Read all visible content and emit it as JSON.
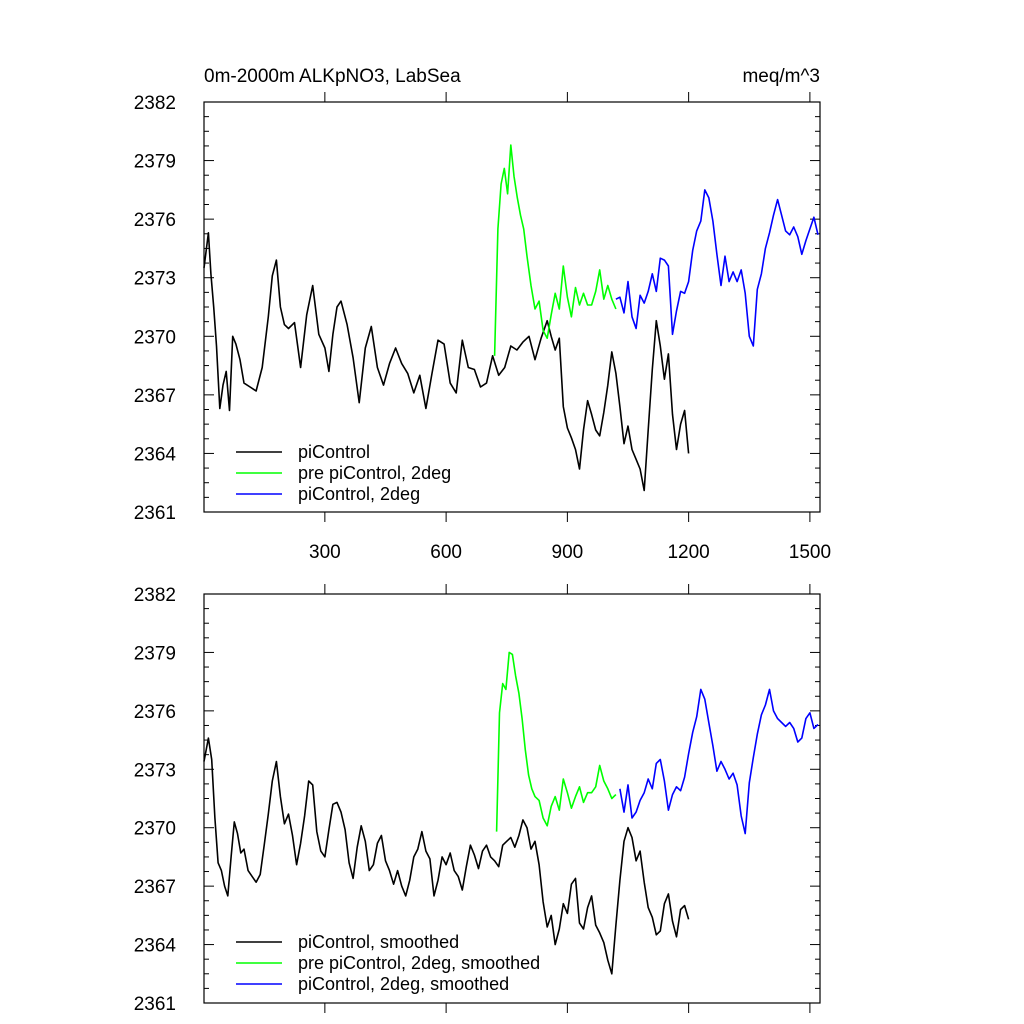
{
  "chart_data": [
    {
      "type": "line",
      "title": "0m-2000m ALKpNO3, LabSea",
      "units": "meq/m^3",
      "xlim": [
        1,
        1525
      ],
      "ylim": [
        2361,
        2382
      ],
      "x_ticks": [
        300,
        600,
        900,
        1200,
        1500
      ],
      "x_tick_labels": [
        "300",
        "600",
        "900",
        "1200",
        "1500"
      ],
      "y_ticks": [
        2361,
        2364,
        2367,
        2370,
        2373,
        2376,
        2379,
        2382
      ],
      "y_tick_labels": [
        "2361",
        "2364",
        "2367",
        "2370",
        "2373",
        "2376",
        "2379",
        "2382"
      ],
      "legend_position": "bottom-left",
      "series": [
        {
          "name": "piControl",
          "color": "#000000",
          "x": [
            1,
            12,
            18,
            25,
            32,
            40,
            48,
            56,
            64,
            72,
            80,
            90,
            100,
            115,
            130,
            145,
            160,
            170,
            180,
            190,
            200,
            210,
            225,
            240,
            255,
            270,
            285,
            300,
            310,
            320,
            330,
            340,
            355,
            370,
            385,
            400,
            415,
            430,
            445,
            460,
            475,
            490,
            505,
            520,
            535,
            550,
            565,
            580,
            595,
            610,
            625,
            640,
            655,
            670,
            685,
            700,
            715,
            730,
            745,
            760,
            775,
            790,
            805,
            820,
            835,
            850,
            860,
            870,
            880,
            890,
            900,
            910,
            920,
            930,
            940,
            950,
            960,
            970,
            980,
            990,
            1000,
            1010,
            1020,
            1030,
            1040,
            1050,
            1060,
            1070,
            1080,
            1090,
            1100,
            1110,
            1120,
            1130,
            1140,
            1150,
            1160,
            1170,
            1180,
            1190,
            1200
          ],
          "values": [
            2373.5,
            2375.3,
            2373.2,
            2371.5,
            2369.5,
            2366.3,
            2367.5,
            2368.2,
            2366.2,
            2370.0,
            2369.6,
            2368.8,
            2367.6,
            2367.4,
            2367.2,
            2368.4,
            2371.0,
            2373.1,
            2373.9,
            2371.5,
            2370.6,
            2370.4,
            2370.7,
            2368.4,
            2371.1,
            2372.6,
            2370.1,
            2369.4,
            2368.2,
            2370.1,
            2371.5,
            2371.8,
            2370.6,
            2368.9,
            2366.6,
            2369.4,
            2370.5,
            2368.4,
            2367.5,
            2368.6,
            2369.4,
            2368.6,
            2368.1,
            2367.1,
            2368.0,
            2366.3,
            2368.1,
            2369.8,
            2369.6,
            2367.6,
            2367.1,
            2369.8,
            2368.4,
            2368.3,
            2367.4,
            2367.6,
            2369.0,
            2368.0,
            2368.4,
            2369.5,
            2369.3,
            2369.7,
            2370.0,
            2368.8,
            2369.9,
            2370.8,
            2370.0,
            2369.3,
            2369.9,
            2366.4,
            2365.3,
            2364.8,
            2364.2,
            2363.2,
            2365.2,
            2366.7,
            2366.0,
            2365.2,
            2364.9,
            2366.1,
            2367.5,
            2369.2,
            2368.1,
            2366.4,
            2364.5,
            2365.4,
            2364.2,
            2363.7,
            2363.2,
            2362.1,
            2365.2,
            2368.3,
            2370.8,
            2369.5,
            2367.8,
            2369.1,
            2366.0,
            2364.2,
            2365.5,
            2366.2,
            2364.0
          ]
        },
        {
          "name": "pre piControl, 2deg",
          "color": "#00ff00",
          "x": [
            720,
            728,
            736,
            744,
            752,
            760,
            768,
            776,
            784,
            792,
            800,
            810,
            820,
            830,
            840,
            850,
            860,
            870,
            880,
            890,
            900,
            910,
            920,
            930,
            940,
            950,
            960,
            970,
            980,
            990,
            1000,
            1010,
            1020
          ],
          "values": [
            2369.0,
            2375.5,
            2377.8,
            2378.6,
            2377.3,
            2379.8,
            2378.2,
            2377.1,
            2376.2,
            2375.5,
            2374.1,
            2372.6,
            2371.4,
            2371.8,
            2370.3,
            2369.9,
            2371.1,
            2372.2,
            2371.4,
            2373.6,
            2372.0,
            2371.0,
            2372.5,
            2371.6,
            2372.2,
            2371.6,
            2371.6,
            2372.3,
            2373.4,
            2371.9,
            2372.6,
            2371.9,
            2371.4
          ]
        },
        {
          "name": "piControl, 2deg",
          "color": "#0000ff",
          "x": [
            1020,
            1030,
            1040,
            1050,
            1060,
            1070,
            1080,
            1090,
            1100,
            1110,
            1120,
            1130,
            1140,
            1150,
            1160,
            1170,
            1180,
            1190,
            1200,
            1210,
            1220,
            1230,
            1240,
            1250,
            1260,
            1270,
            1280,
            1290,
            1300,
            1310,
            1320,
            1330,
            1340,
            1350,
            1360,
            1370,
            1380,
            1390,
            1400,
            1410,
            1420,
            1430,
            1440,
            1450,
            1460,
            1470,
            1480,
            1490,
            1500,
            1510,
            1520
          ],
          "values": [
            2371.9,
            2372.0,
            2371.2,
            2372.8,
            2371.0,
            2370.4,
            2372.1,
            2371.7,
            2372.3,
            2373.2,
            2372.3,
            2374.0,
            2373.9,
            2373.6,
            2370.1,
            2371.3,
            2372.3,
            2372.2,
            2372.8,
            2374.4,
            2375.4,
            2375.9,
            2377.5,
            2377.1,
            2375.9,
            2374.2,
            2372.6,
            2374.1,
            2372.8,
            2373.3,
            2372.8,
            2373.4,
            2372.2,
            2370.0,
            2369.5,
            2372.4,
            2373.2,
            2374.5,
            2375.3,
            2376.2,
            2377.0,
            2376.2,
            2375.4,
            2375.2,
            2375.6,
            2375.1,
            2374.2,
            2374.9,
            2375.5,
            2376.1,
            2375.2
          ]
        }
      ]
    },
    {
      "type": "line",
      "title": "",
      "xlim": [
        1,
        1525
      ],
      "ylim": [
        2361,
        2382
      ],
      "x_ticks": [
        300,
        600,
        900,
        1200,
        1500
      ],
      "y_ticks": [
        2361,
        2364,
        2367,
        2370,
        2373,
        2376,
        2379,
        2382
      ],
      "y_tick_labels": [
        "2361",
        "2364",
        "2367",
        "2370",
        "2373",
        "2376",
        "2379",
        "2382"
      ],
      "legend_position": "bottom-left",
      "series": [
        {
          "name": "piControl, smoothed",
          "color": "#000000",
          "x": [
            1,
            12,
            20,
            28,
            36,
            44,
            52,
            60,
            68,
            76,
            84,
            92,
            100,
            110,
            120,
            130,
            140,
            150,
            160,
            170,
            180,
            190,
            200,
            210,
            220,
            230,
            240,
            250,
            260,
            270,
            280,
            290,
            300,
            310,
            320,
            330,
            340,
            350,
            360,
            370,
            380,
            390,
            400,
            410,
            420,
            430,
            440,
            450,
            460,
            470,
            480,
            490,
            500,
            510,
            520,
            530,
            540,
            550,
            560,
            570,
            580,
            590,
            600,
            610,
            620,
            630,
            640,
            650,
            660,
            670,
            680,
            690,
            700,
            710,
            720,
            730,
            740,
            750,
            760,
            770,
            780,
            790,
            800,
            810,
            820,
            830,
            840,
            850,
            860,
            870,
            880,
            890,
            900,
            910,
            920,
            930,
            940,
            950,
            960,
            970,
            980,
            990,
            1000,
            1010,
            1020,
            1030,
            1040,
            1050,
            1060,
            1070,
            1080,
            1090,
            1100,
            1110,
            1120,
            1130,
            1140,
            1150,
            1160,
            1170,
            1180,
            1190,
            1200
          ],
          "values": [
            2373.4,
            2374.6,
            2373.5,
            2370.5,
            2368.2,
            2367.8,
            2367.0,
            2366.5,
            2368.5,
            2370.3,
            2369.7,
            2368.7,
            2368.9,
            2367.8,
            2367.5,
            2367.2,
            2367.6,
            2369.1,
            2370.7,
            2372.4,
            2373.4,
            2371.6,
            2370.2,
            2370.7,
            2369.6,
            2368.1,
            2369.2,
            2370.6,
            2372.4,
            2372.2,
            2369.8,
            2368.8,
            2368.5,
            2369.9,
            2371.2,
            2371.3,
            2370.8,
            2369.9,
            2368.2,
            2367.4,
            2369.0,
            2370.1,
            2369.3,
            2367.8,
            2368.1,
            2369.2,
            2369.6,
            2368.3,
            2367.8,
            2367.1,
            2367.8,
            2367.0,
            2366.5,
            2367.3,
            2368.5,
            2368.9,
            2369.8,
            2368.8,
            2368.4,
            2366.5,
            2367.3,
            2368.5,
            2368.1,
            2368.7,
            2367.8,
            2367.5,
            2366.8,
            2368.0,
            2369.1,
            2368.6,
            2367.9,
            2368.8,
            2369.1,
            2368.5,
            2368.3,
            2368.0,
            2369.1,
            2369.3,
            2369.5,
            2369.0,
            2369.6,
            2370.4,
            2370.0,
            2368.9,
            2369.3,
            2368.1,
            2366.2,
            2364.9,
            2365.5,
            2364.0,
            2364.8,
            2366.1,
            2365.6,
            2367.1,
            2367.4,
            2365.1,
            2364.8,
            2365.9,
            2366.5,
            2365.0,
            2364.6,
            2364.1,
            2363.2,
            2362.5,
            2365.0,
            2367.3,
            2369.3,
            2370.0,
            2369.5,
            2368.3,
            2368.8,
            2367.2,
            2365.9,
            2365.4,
            2364.5,
            2364.7,
            2366.1,
            2366.6,
            2365.2,
            2364.4,
            2365.8,
            2366.0,
            2365.3
          ]
        },
        {
          "name": "pre piControl, 2deg, smoothed",
          "color": "#00ff00",
          "x": [
            725,
            732,
            740,
            748,
            756,
            764,
            772,
            780,
            788,
            796,
            804,
            812,
            820,
            830,
            840,
            850,
            860,
            870,
            880,
            890,
            900,
            910,
            920,
            930,
            940,
            950,
            960,
            970,
            980,
            990,
            1000,
            1010,
            1020
          ],
          "values": [
            2369.8,
            2375.9,
            2377.4,
            2377.1,
            2379.0,
            2378.9,
            2377.8,
            2376.9,
            2375.6,
            2374.0,
            2372.7,
            2372.0,
            2371.6,
            2371.4,
            2370.5,
            2370.1,
            2371.1,
            2371.6,
            2370.9,
            2372.5,
            2371.8,
            2371.0,
            2371.6,
            2372.1,
            2371.3,
            2371.8,
            2371.8,
            2372.1,
            2373.2,
            2372.4,
            2372.0,
            2371.5,
            2371.7
          ]
        },
        {
          "name": "piControl, 2deg, smoothed",
          "color": "#0000ff",
          "x": [
            1030,
            1040,
            1050,
            1060,
            1070,
            1080,
            1090,
            1100,
            1110,
            1120,
            1130,
            1140,
            1150,
            1160,
            1170,
            1180,
            1190,
            1200,
            1210,
            1220,
            1230,
            1240,
            1250,
            1260,
            1270,
            1280,
            1290,
            1300,
            1310,
            1320,
            1330,
            1340,
            1350,
            1360,
            1370,
            1380,
            1390,
            1400,
            1410,
            1420,
            1430,
            1440,
            1450,
            1460,
            1470,
            1480,
            1490,
            1500,
            1510,
            1520
          ],
          "values": [
            2372.0,
            2370.8,
            2372.2,
            2370.5,
            2370.8,
            2371.4,
            2371.8,
            2372.5,
            2372.0,
            2373.3,
            2373.5,
            2372.4,
            2370.9,
            2371.7,
            2372.1,
            2371.9,
            2372.6,
            2373.8,
            2374.9,
            2375.7,
            2377.1,
            2376.6,
            2375.4,
            2374.2,
            2372.9,
            2373.4,
            2373.0,
            2372.5,
            2372.8,
            2372.2,
            2370.6,
            2369.7,
            2372.3,
            2373.6,
            2374.8,
            2375.8,
            2376.3,
            2377.1,
            2376.0,
            2375.6,
            2375.4,
            2375.2,
            2375.4,
            2375.1,
            2374.4,
            2374.6,
            2375.6,
            2375.9,
            2375.1,
            2375.3
          ]
        }
      ]
    }
  ]
}
